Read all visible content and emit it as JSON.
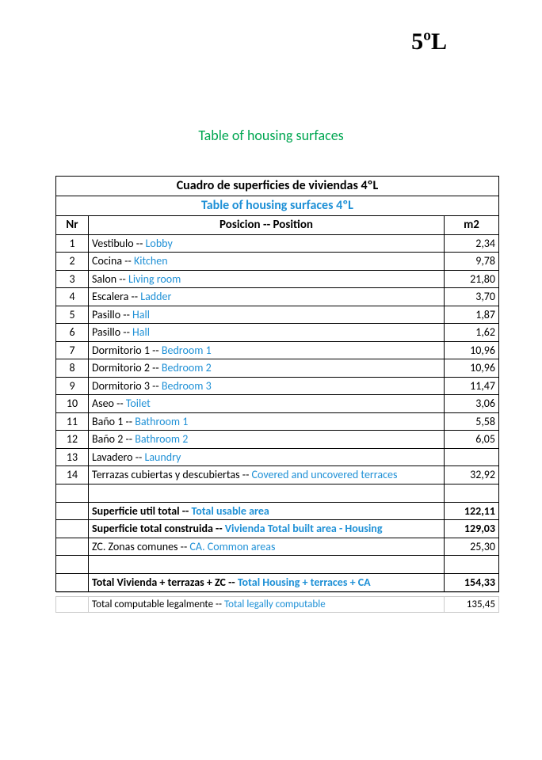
{
  "corner_label": "5ºL",
  "page_title": "Table of housing surfaces",
  "table_title_es": "Cuadro de superficies de viviendas 4ºL",
  "table_title_en": "Table of housing surfaces 4ºL",
  "headers": {
    "nr": "Nr",
    "position": "Posicion -- Position",
    "m2": "m2"
  },
  "separator": " -- ",
  "rows": [
    {
      "nr": "1",
      "es": "Vestibulo",
      "en": "Lobby",
      "m2": "2,34"
    },
    {
      "nr": "2",
      "es": "Cocina",
      "en": "Kitchen",
      "m2": "9,78"
    },
    {
      "nr": "3",
      "es": "Salon",
      "en": "Living room",
      "m2": "21,80"
    },
    {
      "nr": "4",
      "es": "Escalera",
      "en": "Ladder",
      "m2": "3,70"
    },
    {
      "nr": "5",
      "es": "Pasillo",
      "en": "Hall",
      "m2": "1,87"
    },
    {
      "nr": "6",
      "es": "Pasillo",
      "en": "Hall",
      "m2": "1,62"
    },
    {
      "nr": "7",
      "es": "Dormitorio 1",
      "en": "Bedroom 1",
      "m2": "10,96"
    },
    {
      "nr": "8",
      "es": "Dormitorio 2",
      "en": "Bedroom 2",
      "m2": "10,96"
    },
    {
      "nr": "9",
      "es": "Dormitorio 3",
      "en": "Bedroom 3",
      "m2": "11,47"
    },
    {
      "nr": "10",
      "es": "Aseo",
      "en": "Toilet",
      "m2": "3,06"
    },
    {
      "nr": "11",
      "es": "Baño 1",
      "en": "Bathroom 1",
      "m2": "5,58"
    },
    {
      "nr": "12",
      "es": "Baño 2",
      "en": "Bathroom 2",
      "m2": "6,05"
    },
    {
      "nr": "13",
      "es": "Lavadero",
      "en": "Laundry",
      "m2": ""
    },
    {
      "nr": "14",
      "es": "Terrazas cubiertas y descubiertas",
      "en": "Covered and uncovered terraces",
      "m2": "32,92"
    }
  ],
  "totals": [
    {
      "bold": true,
      "es": "Superficie util total",
      "en": "Total usable area",
      "m2": "122,11"
    },
    {
      "bold": true,
      "es": "Superficie total construida",
      "en": "Vivienda Total built area - Housing",
      "m2": "129,03"
    },
    {
      "bold": false,
      "es": "ZC. Zonas comunes",
      "en": "CA. Common areas",
      "m2": "25,30"
    }
  ],
  "grand_total": {
    "es": "Total Vivienda + terrazas + ZC ",
    "en": " Total Housing + terraces + CA",
    "m2": "154,33"
  },
  "legal": {
    "es": "Total computable legalmente",
    "en": "Total legally computable",
    "m2": "135,45"
  },
  "colors": {
    "title_green": "#00a651",
    "blue": "#1e90d6",
    "black": "#000000",
    "light_border": "#cccccc"
  },
  "fonts": {
    "body": "Calibri, Arial, sans-serif",
    "corner": "Georgia, Times New Roman, serif",
    "corner_size_pt": 22,
    "title_size_pt": 14,
    "table_size_pt": 11
  }
}
